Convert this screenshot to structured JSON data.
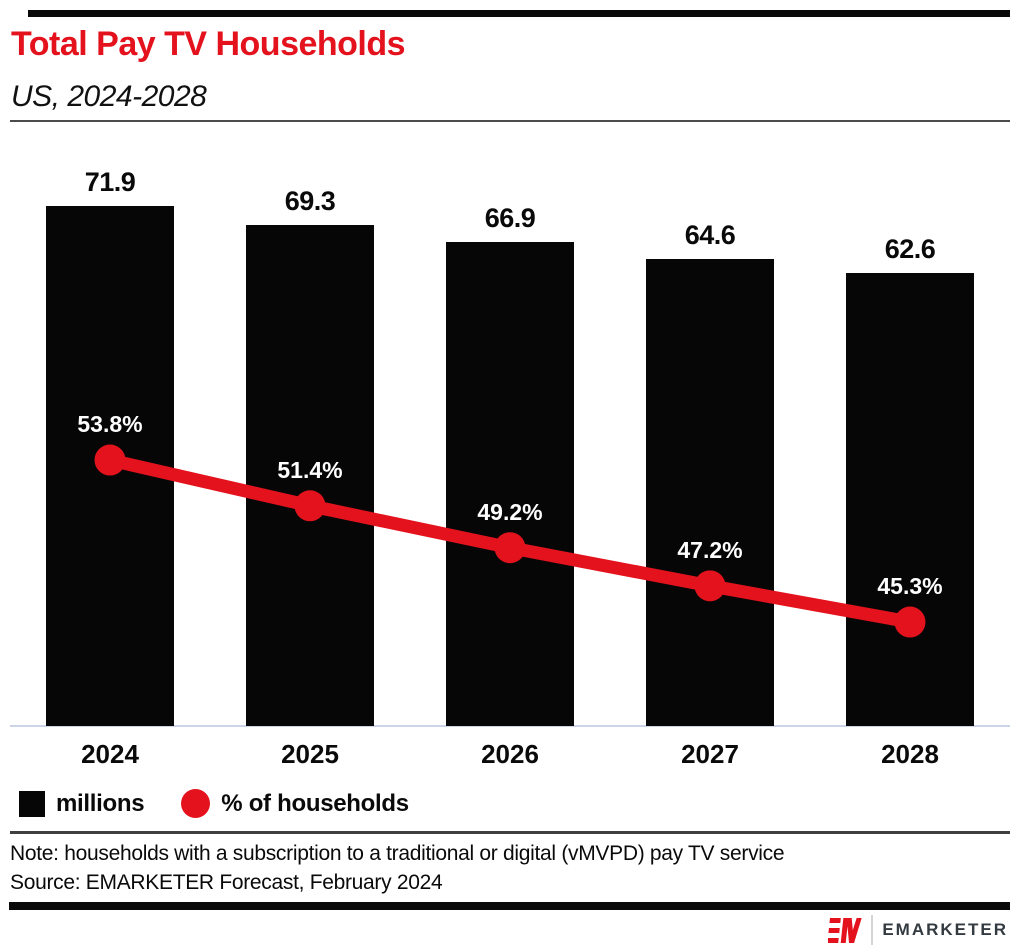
{
  "page": {
    "title": "Total Pay TV Households",
    "subtitle": "US, 2024-2028",
    "note": "Note: households with a subscription to a traditional or digital (vMVPD) pay TV service",
    "source": "Source: EMARKETER Forecast, February 2024",
    "brand": {
      "logo_text": "EMARKETER"
    }
  },
  "colors": {
    "accent_red": "#e4121d",
    "bar_black": "#060606",
    "axis_line": "#ccd4e8",
    "divider_gray": "#4c4c4c"
  },
  "chart_data": {
    "type": "bar",
    "subtype": "bar + line combo, value labels shown directly, no y-axis",
    "title": "Total Pay TV Households",
    "subtitle": "US, 2024-2028",
    "categories": [
      "2024",
      "2025",
      "2026",
      "2027",
      "2028"
    ],
    "series": [
      {
        "name": "millions",
        "type": "bar",
        "color": "#060606",
        "values": [
          71.9,
          69.3,
          66.9,
          64.6,
          62.6
        ],
        "labels": [
          "71.9",
          "69.3",
          "66.9",
          "64.6",
          "62.6"
        ]
      },
      {
        "name": "% of households",
        "type": "line",
        "color": "#e4121d",
        "values": [
          53.8,
          51.4,
          49.2,
          47.2,
          45.3
        ],
        "labels": [
          "53.8%",
          "51.4%",
          "49.2%",
          "47.2%",
          "45.3%"
        ]
      }
    ],
    "legend": [
      {
        "label": "millions",
        "swatch": "square",
        "color": "#060606"
      },
      {
        "label": "% of households",
        "swatch": "circle",
        "color": "#e4121d"
      }
    ],
    "xlabel": "",
    "ylabel": "",
    "grid": "off",
    "legend_position": "bottom-left"
  }
}
